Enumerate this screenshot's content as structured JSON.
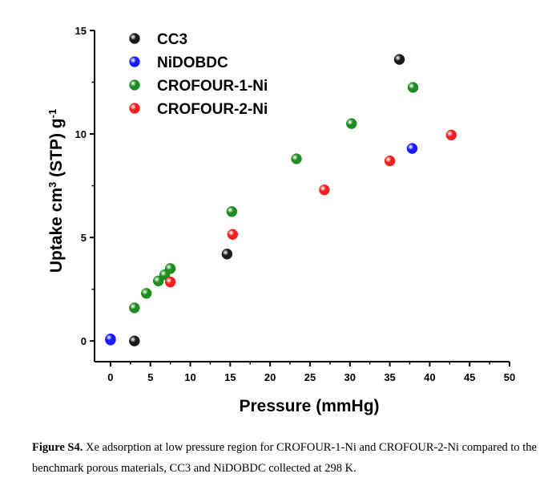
{
  "chart_data": {
    "type": "scatter",
    "xlabel": "Pressure (mmHg)",
    "ylabel": "Uptake cm",
    "ylabel_sup": "3",
    "ylabel_mid": " (STP) g",
    "ylabel_sup2": "-1",
    "xlim": [
      -2,
      50
    ],
    "ylim": [
      -1,
      15
    ],
    "xticks": [
      0,
      5,
      10,
      15,
      20,
      25,
      30,
      35,
      40,
      45,
      50
    ],
    "yticks": [
      0,
      5,
      10,
      15
    ],
    "legend_position": "top-left",
    "series": [
      {
        "name": "CC3",
        "color": "#1a1a1a",
        "points": [
          [
            3,
            0
          ],
          [
            14.6,
            4.2
          ],
          [
            36.2,
            13.6
          ]
        ]
      },
      {
        "name": "NiDOBDC",
        "color": "#1a1aff",
        "points": [
          [
            0,
            0.05
          ],
          [
            0,
            0.1
          ],
          [
            37.8,
            9.3
          ]
        ]
      },
      {
        "name": "CROFOUR-1-Ni",
        "color": "#1e8c1e",
        "points": [
          [
            3,
            1.6
          ],
          [
            4.5,
            2.3
          ],
          [
            6,
            2.9
          ],
          [
            6.8,
            3.2
          ],
          [
            7.5,
            3.5
          ],
          [
            15.2,
            6.25
          ],
          [
            23.3,
            8.8
          ],
          [
            30.2,
            10.5
          ],
          [
            37.9,
            12.25
          ]
        ]
      },
      {
        "name": "CROFOUR-2-Ni",
        "color": "#f02020",
        "points": [
          [
            7.5,
            2.85
          ],
          [
            15.3,
            5.15
          ],
          [
            26.8,
            7.3
          ],
          [
            35,
            8.7
          ],
          [
            42.7,
            9.95
          ]
        ]
      }
    ]
  },
  "caption": {
    "label": "Figure S4.",
    "text": " Xe adsorption at low pressure region for CROFOUR-1-Ni and CROFOUR-2-Ni compared to the benchmark porous materials, CC3 and NiDOBDC collected at 298 K."
  }
}
